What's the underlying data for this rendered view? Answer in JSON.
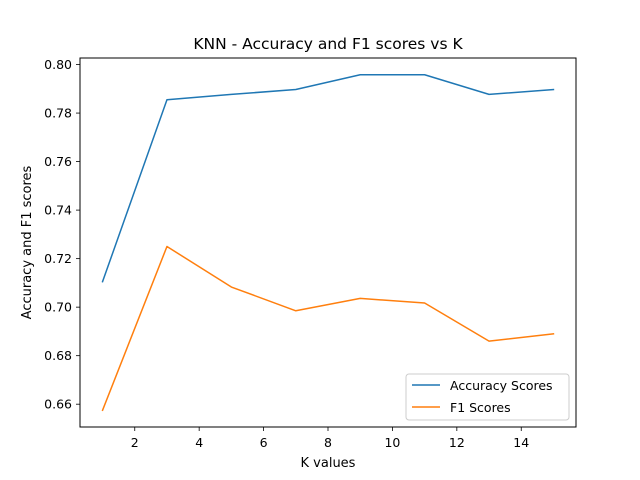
{
  "chart_data": {
    "type": "line",
    "title": "KNN - Accuracy and F1 scores vs K",
    "xlabel": "K values",
    "ylabel": "Accuracy and F1 scores",
    "x": [
      1,
      3,
      5,
      7,
      9,
      11,
      13,
      15
    ],
    "series": [
      {
        "name": "Accuracy Scores",
        "color": "#1f77b4",
        "values": [
          0.7105,
          0.7855,
          0.7877,
          0.7897,
          0.7958,
          0.7958,
          0.7877,
          0.7897
        ]
      },
      {
        "name": "F1 Scores",
        "color": "#ff7f0e",
        "values": [
          0.6575,
          0.725,
          0.7083,
          0.6985,
          0.7036,
          0.7017,
          0.686,
          0.689
        ]
      }
    ],
    "xticks": [
      2,
      4,
      6,
      8,
      10,
      12,
      14
    ],
    "xtick_labels": [
      "2",
      "4",
      "6",
      "8",
      "10",
      "12",
      "14"
    ],
    "yticks": [
      0.66,
      0.68,
      0.7,
      0.72,
      0.74,
      0.76,
      0.78,
      0.8
    ],
    "ytick_labels": [
      "0.66",
      "0.68",
      "0.70",
      "0.72",
      "0.74",
      "0.76",
      "0.78",
      "0.80"
    ],
    "xlim": [
      0.3,
      15.7
    ],
    "ylim": [
      0.6506,
      0.8027
    ],
    "grid": false,
    "legend": "lower-right"
  }
}
